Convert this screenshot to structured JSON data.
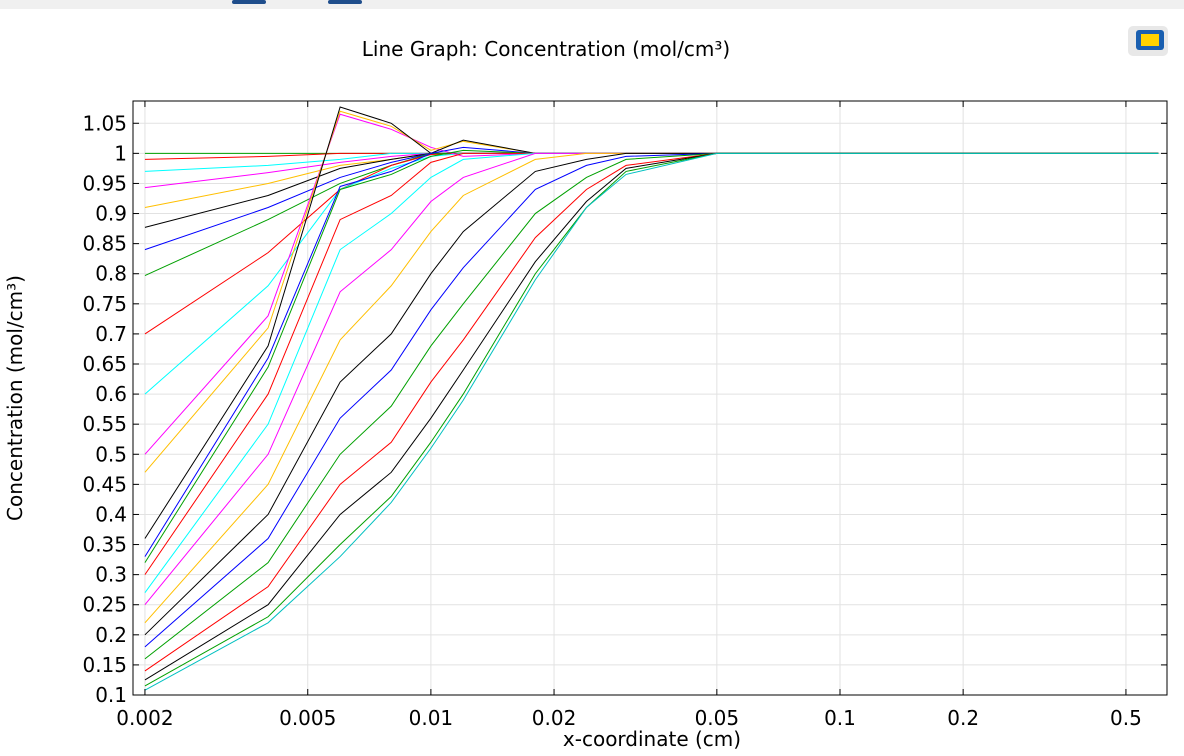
{
  "chart_data": {
    "type": "line",
    "title": "Line Graph: Concentration (mol/cm³)",
    "x_label": "x-coordinate (cm)",
    "y_label": "Concentration (mol/cm³)",
    "log_x": true,
    "grid": true,
    "xlim": [
      0.00187,
      0.63
    ],
    "ylim": [
      0.1,
      1.087
    ],
    "xticks": [
      0.002,
      0.005,
      0.01,
      0.02,
      0.05,
      0.1,
      0.2,
      0.5
    ],
    "yticks": [
      0.1,
      0.15,
      0.2,
      0.25,
      0.3,
      0.35,
      0.4,
      0.45,
      0.5,
      0.55,
      0.6,
      0.65,
      0.7,
      0.75,
      0.8,
      0.85,
      0.9,
      0.95,
      1,
      1.05
    ],
    "x": [
      0.002,
      0.004,
      0.006,
      0.008,
      0.01,
      0.012,
      0.018,
      0.024,
      0.03,
      0.05,
      0.6
    ],
    "series": [
      {
        "color": "#00a000",
        "values": [
          1,
          1,
          1,
          1,
          1,
          1,
          1,
          1,
          1,
          1,
          1
        ]
      },
      {
        "color": "#ff0000",
        "values": [
          0.99,
          0.995,
          1.0,
          1.0,
          1,
          1,
          1,
          1,
          1,
          1,
          1
        ]
      },
      {
        "color": "#00ffff",
        "values": [
          0.97,
          0.98,
          0.99,
          1,
          1,
          1,
          1,
          1,
          1,
          1,
          1
        ]
      },
      {
        "color": "#ff00ff",
        "values": [
          0.943,
          0.968,
          0.985,
          0.995,
          1,
          1,
          1,
          1,
          1,
          1,
          1
        ]
      },
      {
        "color": "#ffbf00",
        "values": [
          0.91,
          0.95,
          0.98,
          0.99,
          1,
          1,
          1,
          1,
          1,
          1,
          1
        ]
      },
      {
        "color": "#000000",
        "values": [
          0.877,
          0.93,
          0.975,
          0.99,
          1,
          1,
          1,
          1,
          1,
          1,
          1
        ]
      },
      {
        "color": "#0000ff",
        "values": [
          0.84,
          0.91,
          0.96,
          0.985,
          1,
          1,
          1,
          1,
          1,
          1,
          1
        ]
      },
      {
        "color": "#00a000",
        "values": [
          0.797,
          0.89,
          0.95,
          0.98,
          1,
          1,
          1,
          1,
          1,
          1,
          1
        ]
      },
      {
        "color": "#ff0000",
        "values": [
          0.7,
          0.835,
          0.94,
          0.98,
          0.998,
          1,
          1,
          1,
          1,
          1,
          1
        ]
      },
      {
        "color": "#00ffff",
        "values": [
          0.6,
          0.78,
          0.94,
          0.975,
          0.995,
          1.0,
          1,
          1,
          1,
          1,
          1
        ]
      },
      {
        "color": "#ff00ff",
        "values": [
          0.5,
          0.73,
          1.065,
          1.04,
          1.01,
          0.995,
          1,
          1,
          1,
          1,
          1
        ]
      },
      {
        "color": "#ffbf00",
        "values": [
          0.47,
          0.71,
          1.07,
          1.045,
          1.005,
          1.02,
          1.0,
          1,
          1,
          1,
          1
        ]
      },
      {
        "color": "#000000",
        "values": [
          0.36,
          0.68,
          1.077,
          1.05,
          1.0,
          1.022,
          1.0,
          1,
          1,
          1,
          1
        ]
      },
      {
        "color": "#0000ff",
        "values": [
          0.33,
          0.66,
          0.945,
          0.97,
          1.0,
          1.01,
          1.0,
          1,
          1,
          1,
          1
        ]
      },
      {
        "color": "#00a000",
        "values": [
          0.32,
          0.645,
          0.94,
          0.965,
          0.995,
          1.005,
          1.0,
          1,
          1,
          1,
          1
        ]
      },
      {
        "color": "#ff0000",
        "values": [
          0.3,
          0.6,
          0.89,
          0.93,
          0.985,
          1.0,
          1.0,
          1,
          1,
          1,
          1
        ]
      },
      {
        "color": "#00ffff",
        "values": [
          0.27,
          0.55,
          0.84,
          0.9,
          0.96,
          0.99,
          1.0,
          1,
          1,
          1,
          1
        ]
      },
      {
        "color": "#ff00ff",
        "values": [
          0.25,
          0.5,
          0.77,
          0.84,
          0.92,
          0.96,
          1.0,
          1,
          1,
          1,
          1
        ]
      },
      {
        "color": "#ffbf00",
        "values": [
          0.22,
          0.45,
          0.69,
          0.78,
          0.87,
          0.93,
          0.99,
          1,
          1,
          1,
          1
        ]
      },
      {
        "color": "#000000",
        "values": [
          0.2,
          0.4,
          0.62,
          0.7,
          0.8,
          0.87,
          0.97,
          0.99,
          1,
          1,
          1
        ]
      },
      {
        "color": "#0000ff",
        "values": [
          0.18,
          0.36,
          0.56,
          0.64,
          0.74,
          0.81,
          0.94,
          0.98,
          0.995,
          1,
          1
        ]
      },
      {
        "color": "#00a000",
        "values": [
          0.16,
          0.32,
          0.5,
          0.58,
          0.68,
          0.75,
          0.9,
          0.96,
          0.99,
          1,
          1
        ]
      },
      {
        "color": "#ff0000",
        "values": [
          0.14,
          0.28,
          0.45,
          0.52,
          0.62,
          0.69,
          0.86,
          0.94,
          0.98,
          1,
          1
        ]
      },
      {
        "color": "#000000",
        "values": [
          0.125,
          0.25,
          0.4,
          0.47,
          0.56,
          0.64,
          0.82,
          0.92,
          0.975,
          1,
          1
        ]
      },
      {
        "color": "#00a000",
        "values": [
          0.115,
          0.23,
          0.35,
          0.43,
          0.52,
          0.6,
          0.8,
          0.91,
          0.97,
          1,
          1
        ]
      },
      {
        "color": "#00c0c0",
        "values": [
          0.108,
          0.22,
          0.33,
          0.42,
          0.51,
          0.59,
          0.79,
          0.91,
          0.965,
          1,
          1
        ]
      }
    ]
  }
}
